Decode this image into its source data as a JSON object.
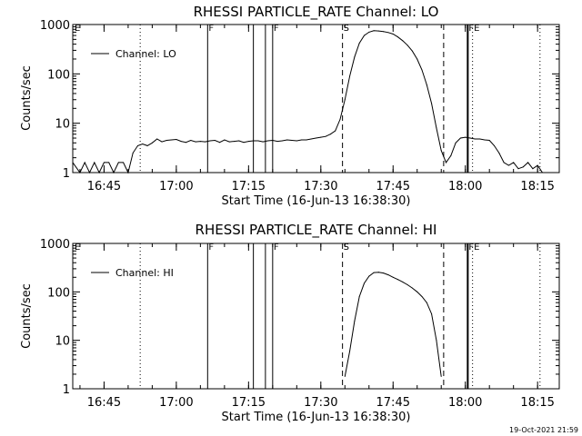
{
  "footer": {
    "timestamp": "19-Oct-2021 21:59"
  },
  "chart_data": [
    {
      "type": "line",
      "title": "RHESSI PARTICLE_RATE Channel: LO",
      "xlabel": "Start Time (16-Jun-13 16:38:30)",
      "ylabel": "Counts/sec",
      "yscale": "log",
      "ylim": [
        1,
        1000
      ],
      "xlim": [
        "16:38:30",
        "18:19:30"
      ],
      "x_ticks": [
        "16:45",
        "17:00",
        "17:15",
        "17:30",
        "17:45",
        "18:00",
        "18:15"
      ],
      "y_ticks": [
        "1",
        "10",
        "100",
        "1000"
      ],
      "legend": {
        "label": "Channel: LO",
        "position": "top-left"
      },
      "series": [
        {
          "name": "Channel: LO",
          "x": [
            "16:38:30",
            "16:40",
            "16:41",
            "16:42",
            "16:43",
            "16:44",
            "16:45",
            "16:46",
            "16:47",
            "16:48",
            "16:49",
            "16:50",
            "16:51",
            "16:52",
            "16:53",
            "16:54",
            "16:55",
            "16:56",
            "16:57",
            "16:58",
            "16:59",
            "17:00",
            "17:01",
            "17:02",
            "17:03",
            "17:04",
            "17:05",
            "17:06",
            "17:07",
            "17:08",
            "17:09",
            "17:10",
            "17:11",
            "17:12",
            "17:13",
            "17:14",
            "17:15",
            "17:16",
            "17:17",
            "17:18",
            "17:19",
            "17:20",
            "17:21",
            "17:22",
            "17:23",
            "17:24",
            "17:25",
            "17:26",
            "17:27",
            "17:28",
            "17:29",
            "17:30",
            "17:31",
            "17:32",
            "17:33",
            "17:34",
            "17:35",
            "17:36",
            "17:37",
            "17:38",
            "17:39",
            "17:40",
            "17:41",
            "17:42",
            "17:43",
            "17:44",
            "17:45",
            "17:46",
            "17:47",
            "17:48",
            "17:49",
            "17:50",
            "17:51",
            "17:52",
            "17:53",
            "17:54",
            "17:55",
            "17:56",
            "17:57",
            "17:58",
            "17:59",
            "18:00",
            "18:01",
            "18:02",
            "18:03",
            "18:04",
            "18:05",
            "18:06",
            "18:07",
            "18:08",
            "18:09",
            "18:10",
            "18:11",
            "18:12",
            "18:13",
            "18:14",
            "18:15",
            "18:16"
          ],
          "values": [
            1.6,
            1,
            1.6,
            1,
            1.6,
            1,
            1.6,
            1.6,
            1,
            1.6,
            1.6,
            1,
            2.5,
            3.5,
            3.8,
            3.5,
            4,
            4.8,
            4.2,
            4.5,
            4.6,
            4.7,
            4.3,
            4.1,
            4.5,
            4.2,
            4.3,
            4.2,
            4.4,
            4.5,
            4.1,
            4.6,
            4.2,
            4.3,
            4.4,
            4.1,
            4.3,
            4.4,
            4.4,
            4.2,
            4.4,
            4.5,
            4.3,
            4.4,
            4.6,
            4.5,
            4.4,
            4.6,
            4.6,
            4.8,
            5,
            5.2,
            5.4,
            6,
            7,
            12,
            30,
            90,
            220,
            420,
            600,
            700,
            750,
            740,
            720,
            690,
            640,
            560,
            470,
            380,
            290,
            200,
            120,
            60,
            25,
            8,
            2.8,
            1.6,
            2.2,
            4,
            5,
            5.2,
            5,
            4.8,
            4.8,
            4.6,
            4.5,
            3.5,
            2.5,
            1.6,
            1.4,
            1.6,
            1.2,
            1.3,
            1.6,
            1.2,
            1.4,
            1
          ]
        }
      ]
    },
    {
      "type": "line",
      "title": "RHESSI PARTICLE_RATE Channel: HI",
      "xlabel": "Start Time (16-Jun-13 16:38:30)",
      "ylabel": "Counts/sec",
      "yscale": "log",
      "ylim": [
        1,
        1000
      ],
      "xlim": [
        "16:38:30",
        "18:19:30"
      ],
      "x_ticks": [
        "16:45",
        "17:00",
        "17:15",
        "17:30",
        "17:45",
        "18:00",
        "18:15"
      ],
      "y_ticks": [
        "1",
        "10",
        "100",
        "1000"
      ],
      "legend": {
        "label": "Channel: HI",
        "position": "top-left"
      },
      "series": [
        {
          "name": "Channel: HI",
          "x": [
            "17:35",
            "17:36",
            "17:37",
            "17:38",
            "17:39",
            "17:40",
            "17:41",
            "17:42",
            "17:43",
            "17:44",
            "17:45",
            "17:46",
            "17:47",
            "17:48",
            "17:49",
            "17:50",
            "17:51",
            "17:52",
            "17:53",
            "17:54",
            "17:55"
          ],
          "values": [
            1.8,
            6,
            25,
            80,
            150,
            210,
            250,
            255,
            245,
            225,
            200,
            180,
            160,
            140,
            120,
            100,
            80,
            60,
            35,
            10,
            1.8
          ]
        }
      ]
    }
  ],
  "markers": [
    {
      "time": "16:52:30",
      "style": "dotted",
      "label": ""
    },
    {
      "time": "17:06:30",
      "style": "solid",
      "label": "F"
    },
    {
      "time": "17:16:00",
      "style": "solid",
      "label": ""
    },
    {
      "time": "17:18:30",
      "style": "solid",
      "label": ""
    },
    {
      "time": "17:20:00",
      "style": "solid",
      "label": "F"
    },
    {
      "time": "17:34:30",
      "style": "dashed",
      "label": "S"
    },
    {
      "time": "17:55:30",
      "style": "dashed",
      "label": ""
    },
    {
      "time": "18:00:30",
      "style": "solid",
      "label": "FE"
    },
    {
      "time": "18:01:30",
      "style": "dotted",
      "label": ""
    },
    {
      "time": "18:15:30",
      "style": "dotted",
      "label": ""
    }
  ],
  "edge_flag": "E"
}
